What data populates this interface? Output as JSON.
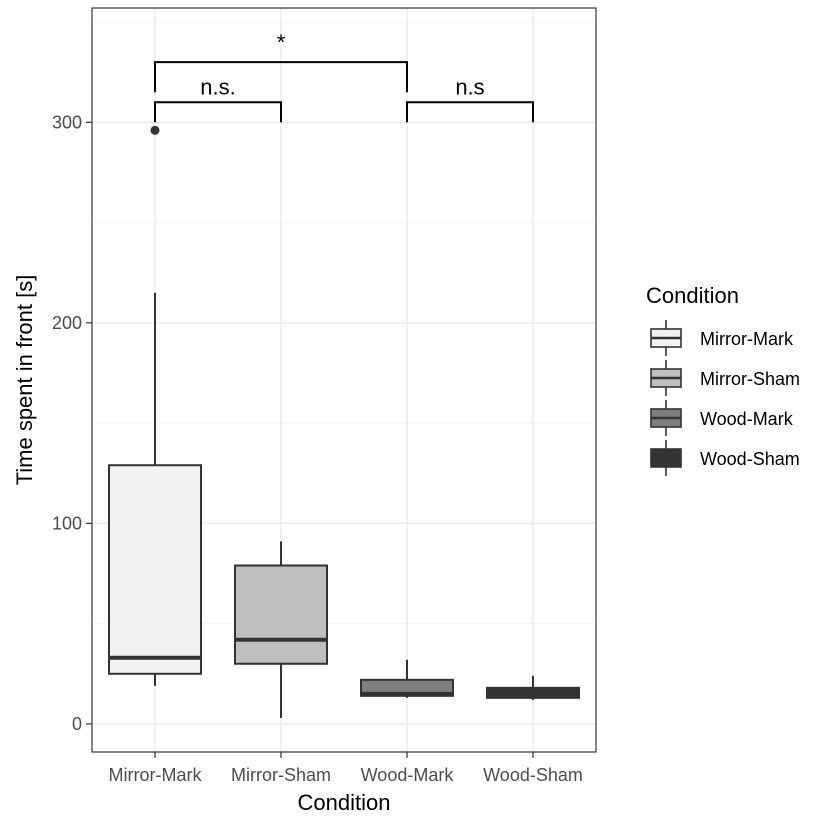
{
  "chart_data": {
    "type": "box",
    "xlabel": "Condition",
    "ylabel": "Time spent in front [s]",
    "ylim": [
      -14,
      357
    ],
    "yticks": [
      0,
      100,
      200,
      300
    ],
    "grid": true,
    "legend": {
      "title": "Condition",
      "placement": "right",
      "entries": [
        "Mirror-Mark",
        "Mirror-Sham",
        "Wood-Mark",
        "Wood-Sham"
      ]
    },
    "categories": [
      "Mirror-Mark",
      "Mirror-Sham",
      "Wood-Mark",
      "Wood-Sham"
    ],
    "boxes": [
      {
        "name": "Mirror-Mark",
        "fill": "#f2f2f2",
        "whisker_low": 19,
        "q1": 25,
        "median": 33,
        "q3": 129,
        "whisker_high": 215,
        "outliers": [
          296
        ]
      },
      {
        "name": "Mirror-Sham",
        "fill": "#bfbfbf",
        "whisker_low": 3,
        "q1": 30,
        "median": 42,
        "q3": 79,
        "whisker_high": 91,
        "outliers": []
      },
      {
        "name": "Wood-Mark",
        "fill": "#7f7f7f",
        "whisker_low": 13,
        "q1": 14,
        "median": 15,
        "q3": 22,
        "whisker_high": 32,
        "outliers": []
      },
      {
        "name": "Wood-Sham",
        "fill": "#333333",
        "whisker_low": 12,
        "q1": 13,
        "median": 16,
        "q3": 18,
        "whisker_high": 24,
        "outliers": []
      }
    ],
    "annotations": [
      {
        "label": "*",
        "from": "Mirror-Mark",
        "to": "Wood-Mark",
        "y": 330,
        "drop": 15
      },
      {
        "label": "n.s.",
        "from": "Mirror-Mark",
        "to": "Mirror-Sham",
        "y": 310,
        "drop": 10
      },
      {
        "label": "n.s",
        "from": "Wood-Mark",
        "to": "Wood-Sham",
        "y": 310,
        "drop": 10
      }
    ]
  }
}
